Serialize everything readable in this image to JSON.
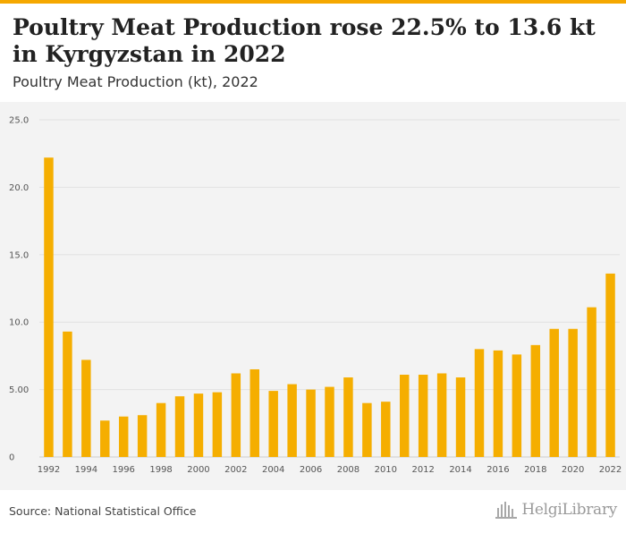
{
  "header": {
    "title": "Poultry Meat Production rose 22.5% to 13.6 kt in Kyrgyzstan in 2022",
    "subtitle": "Poultry Meat Production (kt), 2022"
  },
  "footer": {
    "source": "Source: National Statistical Office",
    "logo": "HelgiLibrary"
  },
  "colors": {
    "bar": "#f5ae00",
    "accent": "#f5a800",
    "grid": "#e2e2e2"
  },
  "chart_data": {
    "type": "bar",
    "title": "Poultry Meat Production (kt), 2022",
    "xlabel": "",
    "ylabel": "",
    "ylim": [
      0,
      25
    ],
    "yticks": [
      0,
      5,
      10,
      15,
      20,
      25
    ],
    "ytick_labels": [
      "0",
      "5.00",
      "10.0",
      "15.0",
      "20.0",
      "25.0"
    ],
    "xtick_labels": [
      "1992",
      "1994",
      "1996",
      "1998",
      "2000",
      "2002",
      "2004",
      "2006",
      "2008",
      "2010",
      "2012",
      "2014",
      "2016",
      "2018",
      "2020",
      "2022"
    ],
    "categories": [
      "1992",
      "1993",
      "1994",
      "1995",
      "1996",
      "1997",
      "1998",
      "1999",
      "2000",
      "2001",
      "2002",
      "2003",
      "2004",
      "2005",
      "2006",
      "2007",
      "2008",
      "2009",
      "2010",
      "2011",
      "2012",
      "2013",
      "2014",
      "2015",
      "2016",
      "2017",
      "2018",
      "2019",
      "2020",
      "2021",
      "2022"
    ],
    "values": [
      22.2,
      9.3,
      7.2,
      2.7,
      3.0,
      3.1,
      4.0,
      4.5,
      4.7,
      4.8,
      6.2,
      6.5,
      4.9,
      5.4,
      5.0,
      5.2,
      5.9,
      4.0,
      4.1,
      6.1,
      6.1,
      6.2,
      5.9,
      8.0,
      7.9,
      7.6,
      8.3,
      9.5,
      9.5,
      11.1,
      13.6
    ],
    "grid": true,
    "legend": "none"
  }
}
